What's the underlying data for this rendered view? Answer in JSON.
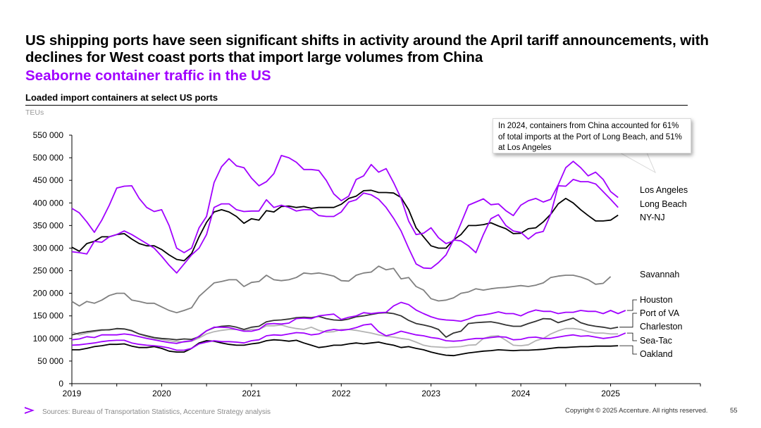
{
  "header": {
    "title": "US shipping ports have seen significant shifts in activity around the April tariff announcements, with declines for West coast ports that import large volumes from China",
    "subtitle": "Seaborne container traffic in the US"
  },
  "callout": {
    "text": "In 2024, containers from China accounted for 61% of total imports at the Port of Long Beach, and 51% at Los Angeles"
  },
  "footer": {
    "sources": "Sources: Bureau of Transportation Statistics, Accenture Strategy analysis",
    "copyright": "Copyright © 2025 Accenture. All rights reserved.",
    "page_number": "55"
  },
  "colors": {
    "accent": "#a100ff",
    "purple_series": "#a100ff",
    "black_series": "#000000",
    "gray_series": "#808080",
    "light_gray_series": "#b3b3b3",
    "dark_gray_series": "#333333"
  },
  "chart_data": {
    "type": "line",
    "title": "Loaded import containers at select US ports",
    "ylabel": "TEUs",
    "xlabel": "",
    "xlim": [
      2019,
      2026
    ],
    "ylim": [
      0,
      550000
    ],
    "yticks": [
      "550 000",
      "500 000",
      "450 000",
      "400 000",
      "350 000",
      "300 000",
      "250 000",
      "200 000",
      "150 000",
      "100 000",
      "50 000",
      "0"
    ],
    "ytick_values": [
      550000,
      500000,
      450000,
      400000,
      350000,
      300000,
      250000,
      200000,
      150000,
      100000,
      50000,
      0
    ],
    "xticks": [
      "2019",
      "2020",
      "2021",
      "2022",
      "2023",
      "2024",
      "2025"
    ],
    "xtick_values": [
      2019,
      2020,
      2021,
      2022,
      2023,
      2024,
      2025
    ],
    "x_start": 2019.0,
    "x_step_months": 1,
    "series": [
      {
        "name": "Los Angeles",
        "color": "#a100ff",
        "values": [
          388000,
          378000,
          358000,
          335000,
          362000,
          395000,
          433000,
          437000,
          438000,
          410000,
          390000,
          381000,
          385000,
          350000,
          300000,
          290000,
          300000,
          345000,
          370000,
          445000,
          480000,
          498000,
          482000,
          478000,
          455000,
          438000,
          447000,
          465000,
          505000,
          500000,
          490000,
          474000,
          474000,
          472000,
          450000,
          420000,
          405000,
          415000,
          452000,
          460000,
          485000,
          468000,
          476000,
          445000,
          410000,
          360000,
          330000,
          333000,
          345000,
          323000,
          310000,
          316000,
          355000,
          395000,
          402000,
          409000,
          396000,
          398000,
          383000,
          372000,
          395000,
          405000,
          410000,
          402000,
          408000,
          440000,
          478000,
          492000,
          478000,
          460000,
          468000,
          452000,
          425000,
          412000
        ]
      },
      {
        "name": "Long Beach",
        "color": "#a100ff",
        "values": [
          292000,
          290000,
          287000,
          315000,
          313000,
          325000,
          330000,
          338000,
          330000,
          320000,
          310000,
          300000,
          282000,
          262000,
          245000,
          265000,
          285000,
          300000,
          330000,
          390000,
          398000,
          398000,
          385000,
          381000,
          382000,
          382000,
          407000,
          390000,
          395000,
          390000,
          382000,
          385000,
          385000,
          372000,
          370000,
          370000,
          380000,
          402000,
          407000,
          422000,
          418000,
          408000,
          390000,
          366000,
          338000,
          300000,
          265000,
          256000,
          255000,
          268000,
          285000,
          318000,
          316000,
          305000,
          290000,
          330000,
          365000,
          374000,
          350000,
          338000,
          335000,
          320000,
          333000,
          337000,
          375000,
          438000,
          437000,
          452000,
          447000,
          447000,
          442000,
          425000,
          408000,
          390000
        ]
      },
      {
        "name": "NY-NJ",
        "color": "#000000",
        "values": [
          302000,
          293000,
          310000,
          315000,
          325000,
          325000,
          330000,
          332000,
          320000,
          310000,
          305000,
          305000,
          297000,
          285000,
          275000,
          272000,
          288000,
          325000,
          357000,
          380000,
          385000,
          380000,
          370000,
          355000,
          365000,
          362000,
          383000,
          380000,
          392000,
          393000,
          390000,
          392000,
          388000,
          390000,
          390000,
          390000,
          397000,
          410000,
          415000,
          427000,
          428000,
          423000,
          423000,
          422000,
          412000,
          385000,
          345000,
          325000,
          305000,
          300000,
          300000,
          318000,
          330000,
          350000,
          350000,
          352000,
          356000,
          349000,
          343000,
          332000,
          333000,
          343000,
          345000,
          358000,
          375000,
          398000,
          410000,
          400000,
          385000,
          372000,
          360000,
          360000,
          362000,
          373000
        ]
      },
      {
        "name": "Savannah",
        "color": "#808080",
        "values": [
          182000,
          172000,
          182000,
          178000,
          185000,
          195000,
          200000,
          200000,
          185000,
          182000,
          178000,
          178000,
          170000,
          162000,
          157000,
          162000,
          168000,
          193000,
          208000,
          223000,
          226000,
          230000,
          230000,
          215000,
          224000,
          226000,
          240000,
          230000,
          228000,
          230000,
          235000,
          245000,
          243000,
          245000,
          242000,
          238000,
          228000,
          227000,
          240000,
          245000,
          247000,
          260000,
          252000,
          255000,
          232000,
          235000,
          215000,
          207000,
          188000,
          183000,
          185000,
          190000,
          200000,
          203000,
          210000,
          207000,
          210000,
          212000,
          213000,
          215000,
          217000,
          215000,
          218000,
          223000,
          235000,
          238000,
          240000,
          240000,
          236000,
          230000,
          220000,
          222000,
          237000
        ]
      },
      {
        "name": "Houston",
        "color": "#a100ff",
        "values": [
          97000,
          99000,
          104000,
          102000,
          108000,
          108000,
          108000,
          110000,
          108000,
          104000,
          100000,
          97000,
          94000,
          91000,
          89000,
          93000,
          95000,
          105000,
          117000,
          125000,
          125000,
          124000,
          120000,
          116000,
          116000,
          120000,
          132000,
          133000,
          132000,
          134000,
          144000,
          145000,
          144000,
          150000,
          152000,
          154000,
          142000,
          147000,
          150000,
          157000,
          155000,
          157000,
          158000,
          172000,
          180000,
          175000,
          163000,
          155000,
          148000,
          143000,
          141000,
          140000,
          138000,
          143000,
          150000,
          152000,
          155000,
          159000,
          155000,
          155000,
          150000,
          158000,
          163000,
          160000,
          160000,
          155000,
          158000,
          158000,
          162000,
          160000,
          160000,
          155000,
          162000,
          155000,
          162000
        ]
      },
      {
        "name": "Port of VA",
        "color": "#333333",
        "values": [
          108000,
          112000,
          115000,
          117000,
          119000,
          119000,
          122000,
          121000,
          117000,
          110000,
          106000,
          102000,
          100000,
          99000,
          97000,
          99000,
          98000,
          104000,
          117000,
          124000,
          127000,
          128000,
          125000,
          120000,
          125000,
          127000,
          137000,
          140000,
          141000,
          143000,
          146000,
          147000,
          146000,
          149000,
          144000,
          141000,
          140000,
          143000,
          148000,
          150000,
          153000,
          156000,
          157000,
          155000,
          150000,
          140000,
          133000,
          130000,
          126000,
          120000,
          103000,
          112000,
          116000,
          133000,
          135000,
          136000,
          137000,
          134000,
          130000,
          127000,
          127000,
          133000,
          138000,
          144000,
          143000,
          135000,
          140000,
          145000,
          135000,
          130000,
          127000,
          125000,
          122000,
          125000
        ]
      },
      {
        "name": "Charleston",
        "color": "#b3b3b3",
        "values": [
          115000,
          108000,
          112000,
          115000,
          118000,
          120000,
          121000,
          121000,
          118000,
          110000,
          104000,
          100000,
          98000,
          95000,
          93000,
          92000,
          94000,
          101000,
          110000,
          115000,
          118000,
          120000,
          120000,
          117000,
          120000,
          120000,
          128000,
          128000,
          130000,
          125000,
          122000,
          120000,
          125000,
          118000,
          114000,
          115000,
          120000,
          120000,
          118000,
          115000,
          112000,
          108000,
          105000,
          103000,
          100000,
          98000,
          92000,
          85000,
          82000,
          81000,
          80000,
          81000,
          82000,
          85000,
          86000,
          100000,
          105000,
          106000,
          96000,
          85000,
          84000,
          86000,
          95000,
          100000,
          110000,
          117000,
          122000,
          122000,
          120000,
          115000,
          112000,
          112000,
          110000,
          110000
        ]
      },
      {
        "name": "Sea-Tac",
        "color": "#a100ff",
        "values": [
          85000,
          86000,
          88000,
          90000,
          93000,
          95000,
          96000,
          96000,
          90000,
          87000,
          85000,
          84000,
          82000,
          79000,
          74000,
          74000,
          78000,
          88000,
          92000,
          95000,
          93000,
          93000,
          92000,
          90000,
          95000,
          97000,
          106000,
          108000,
          107000,
          110000,
          113000,
          112000,
          108000,
          110000,
          117000,
          120000,
          118000,
          120000,
          124000,
          130000,
          132000,
          115000,
          106000,
          110000,
          116000,
          112000,
          108000,
          106000,
          102000,
          100000,
          95000,
          94000,
          95000,
          98000,
          100000,
          100000,
          102000,
          104000,
          103000,
          97000,
          98000,
          102000,
          103000,
          100000,
          100000,
          103000,
          106000,
          108000,
          105000,
          106000,
          103000,
          100000,
          102000,
          105000,
          112000
        ]
      },
      {
        "name": "Oakland",
        "color": "#000000",
        "values": [
          75000,
          75000,
          78000,
          82000,
          84000,
          87000,
          87000,
          88000,
          83000,
          80000,
          80000,
          82000,
          78000,
          72000,
          70000,
          70000,
          78000,
          90000,
          95000,
          94000,
          90000,
          87000,
          85000,
          85000,
          88000,
          90000,
          95000,
          97000,
          96000,
          94000,
          96000,
          90000,
          85000,
          80000,
          82000,
          85000,
          85000,
          88000,
          90000,
          88000,
          90000,
          92000,
          88000,
          85000,
          80000,
          82000,
          78000,
          75000,
          70000,
          66000,
          63000,
          62000,
          65000,
          68000,
          70000,
          72000,
          73000,
          75000,
          74000,
          73000,
          74000,
          74000,
          75000,
          76000,
          78000,
          80000,
          80000,
          81000,
          82000,
          82000,
          83000,
          83000,
          83000,
          84000
        ]
      }
    ],
    "legend_placement": "right, beside series ends"
  }
}
